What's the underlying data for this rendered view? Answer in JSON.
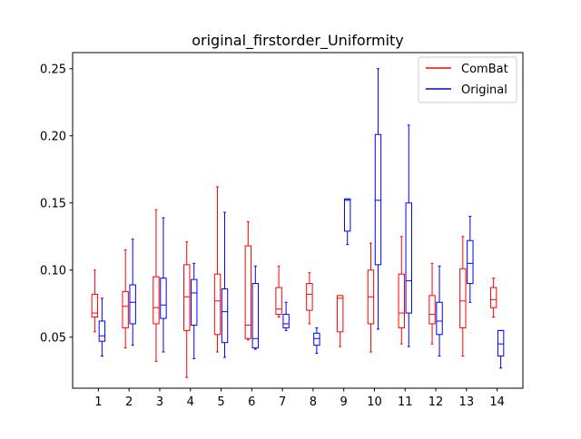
{
  "chart_data": {
    "type": "box",
    "title": "original_firstorder_Uniformity",
    "xlabel": "",
    "ylabel": "",
    "categories": [
      "1",
      "2",
      "3",
      "4",
      "5",
      "6",
      "7",
      "8",
      "9",
      "10",
      "11",
      "12",
      "13",
      "14"
    ],
    "ylim": [
      0.012,
      0.262
    ],
    "yticks": [
      0.05,
      0.1,
      0.15,
      0.2,
      0.25
    ],
    "ytick_labels": [
      "0.05",
      "0.10",
      "0.15",
      "0.20",
      "0.25"
    ],
    "grid": false,
    "legend_position": "top-right",
    "series": [
      {
        "name": "ComBat",
        "color": "#ff0000",
        "boxes": [
          {
            "whislo": 0.054,
            "q1": 0.065,
            "med": 0.068,
            "q3": 0.082,
            "whishi": 0.1
          },
          {
            "whislo": 0.042,
            "q1": 0.057,
            "med": 0.073,
            "q3": 0.084,
            "whishi": 0.115
          },
          {
            "whislo": 0.032,
            "q1": 0.06,
            "med": 0.072,
            "q3": 0.095,
            "whishi": 0.145
          },
          {
            "whislo": 0.02,
            "q1": 0.055,
            "med": 0.08,
            "q3": 0.104,
            "whishi": 0.121
          },
          {
            "whislo": 0.039,
            "q1": 0.052,
            "med": 0.077,
            "q3": 0.097,
            "whishi": 0.162
          },
          {
            "whislo": 0.048,
            "q1": 0.049,
            "med": 0.059,
            "q3": 0.118,
            "whishi": 0.136
          },
          {
            "whislo": 0.065,
            "q1": 0.067,
            "med": 0.071,
            "q3": 0.087,
            "whishi": 0.103
          },
          {
            "whislo": 0.06,
            "q1": 0.07,
            "med": 0.082,
            "q3": 0.09,
            "whishi": 0.098
          },
          {
            "whislo": 0.043,
            "q1": 0.054,
            "med": 0.079,
            "q3": 0.081,
            "whishi": 0.081
          },
          {
            "whislo": 0.039,
            "q1": 0.06,
            "med": 0.08,
            "q3": 0.1,
            "whishi": 0.12
          },
          {
            "whislo": 0.045,
            "q1": 0.057,
            "med": 0.068,
            "q3": 0.097,
            "whishi": 0.125
          },
          {
            "whislo": 0.045,
            "q1": 0.06,
            "med": 0.067,
            "q3": 0.081,
            "whishi": 0.105
          },
          {
            "whislo": 0.036,
            "q1": 0.057,
            "med": 0.077,
            "q3": 0.101,
            "whishi": 0.125
          },
          {
            "whislo": 0.065,
            "q1": 0.072,
            "med": 0.078,
            "q3": 0.087,
            "whishi": 0.094
          }
        ]
      },
      {
        "name": "Original",
        "color": "#0000ff",
        "boxes": [
          {
            "whislo": 0.036,
            "q1": 0.047,
            "med": 0.051,
            "q3": 0.062,
            "whishi": 0.079
          },
          {
            "whislo": 0.044,
            "q1": 0.06,
            "med": 0.076,
            "q3": 0.089,
            "whishi": 0.123
          },
          {
            "whislo": 0.039,
            "q1": 0.064,
            "med": 0.074,
            "q3": 0.094,
            "whishi": 0.139
          },
          {
            "whislo": 0.034,
            "q1": 0.059,
            "med": 0.083,
            "q3": 0.093,
            "whishi": 0.105
          },
          {
            "whislo": 0.035,
            "q1": 0.046,
            "med": 0.069,
            "q3": 0.086,
            "whishi": 0.143
          },
          {
            "whislo": 0.041,
            "q1": 0.042,
            "med": 0.049,
            "q3": 0.09,
            "whishi": 0.103
          },
          {
            "whislo": 0.055,
            "q1": 0.057,
            "med": 0.06,
            "q3": 0.067,
            "whishi": 0.076
          },
          {
            "whislo": 0.038,
            "q1": 0.044,
            "med": 0.049,
            "q3": 0.053,
            "whishi": 0.057
          },
          {
            "whislo": 0.119,
            "q1": 0.129,
            "med": 0.152,
            "q3": 0.153,
            "whishi": 0.153
          },
          {
            "whislo": 0.056,
            "q1": 0.104,
            "med": 0.152,
            "q3": 0.201,
            "whishi": 0.25
          },
          {
            "whislo": 0.043,
            "q1": 0.068,
            "med": 0.092,
            "q3": 0.15,
            "whishi": 0.208
          },
          {
            "whislo": 0.036,
            "q1": 0.052,
            "med": 0.062,
            "q3": 0.076,
            "whishi": 0.103
          },
          {
            "whislo": 0.076,
            "q1": 0.09,
            "med": 0.105,
            "q3": 0.122,
            "whishi": 0.14
          },
          {
            "whislo": 0.027,
            "q1": 0.036,
            "med": 0.045,
            "q3": 0.055,
            "whishi": 0.055
          }
        ]
      }
    ]
  }
}
